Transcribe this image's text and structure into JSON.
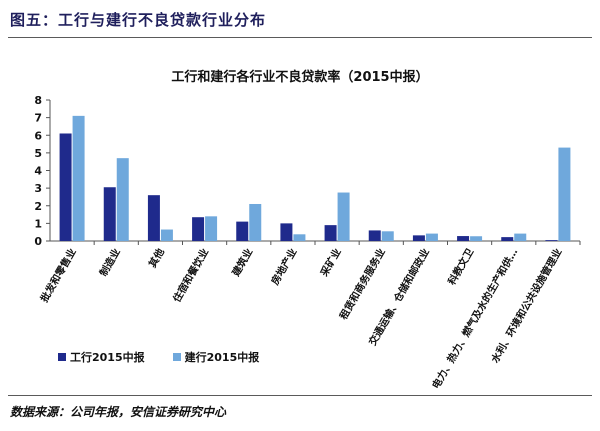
{
  "figure": {
    "title": "图五：工行与建行不良贷款行业分布",
    "source": "数据来源：公司年报，安信证券研究中心"
  },
  "colors": {
    "series1": "#1f2a8c",
    "series2": "#6fa8dc",
    "axis": "#555555",
    "title": "#1f1f5c"
  },
  "chart_data": {
    "type": "bar",
    "title": "工行和建行各行业不良贷款率（2015中报）",
    "xlabel": "",
    "ylabel": "",
    "ylim": [
      0,
      8
    ],
    "yticks": [
      "0",
      "1",
      "2",
      "3",
      "4",
      "5",
      "6",
      "7",
      "8"
    ],
    "grid": false,
    "legend": "bottom-left",
    "categories": [
      "批发和零售业",
      "制造业",
      "其他",
      "住宿和餐饮业",
      "建筑业",
      "房地产业",
      "采矿业",
      "租赁和商务服务业",
      "交通运输、仓储和邮政业",
      "科教文卫",
      "电力、热力、燃气及水的生产和供…",
      "水利、环境和公共设施管理业"
    ],
    "series": [
      {
        "name": "工行2015中报",
        "values": [
          6.1,
          3.05,
          2.6,
          1.35,
          1.1,
          1.0,
          0.9,
          0.6,
          0.32,
          0.28,
          0.22,
          0.05
        ]
      },
      {
        "name": "建行2015中报",
        "values": [
          7.1,
          4.7,
          0.65,
          1.4,
          2.1,
          0.38,
          2.75,
          0.55,
          0.42,
          0.27,
          0.42,
          5.3
        ]
      }
    ]
  }
}
